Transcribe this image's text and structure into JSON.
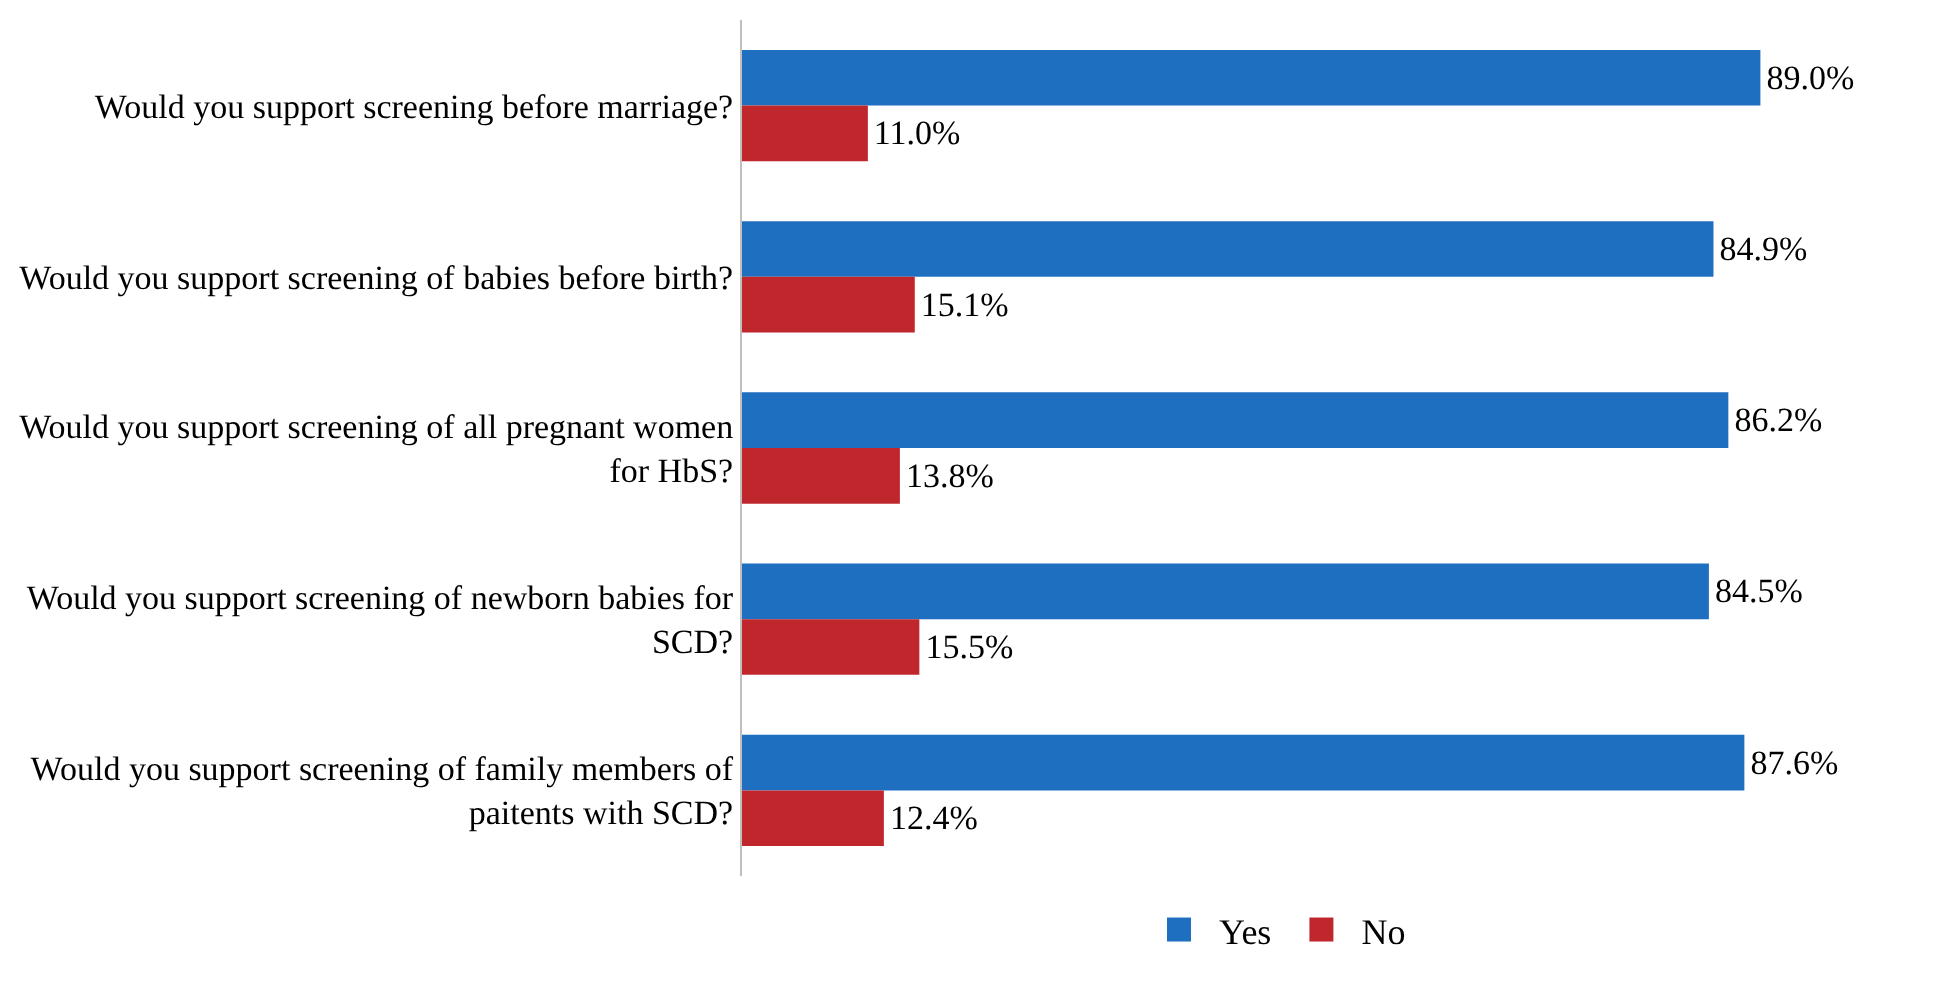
{
  "chart_data": {
    "type": "bar",
    "orientation": "horizontal",
    "categories": [
      "Would you support screening before marriage?",
      "Would you support screening of babies before birth?",
      "Would you support screening of all pregnant women\nfor HbS?",
      "Would you support screening of newborn babies for\nSCD?",
      "Would you support screening of family members of\npaitents with SCD?"
    ],
    "series": [
      {
        "name": "Yes",
        "color": "#1f6fc1",
        "values": [
          89.0,
          84.9,
          86.2,
          84.5,
          87.6
        ],
        "value_labels": [
          "89.0%",
          "84.9%",
          "86.2%",
          "84.5%",
          "87.6%"
        ]
      },
      {
        "name": "No",
        "color": "#c0272d",
        "values": [
          11.0,
          15.1,
          13.8,
          15.5,
          12.4
        ],
        "value_labels": [
          "11.0%",
          "15.1%",
          "13.8%",
          "15.5%",
          "12.4%"
        ]
      }
    ],
    "legend": "bottom"
  }
}
